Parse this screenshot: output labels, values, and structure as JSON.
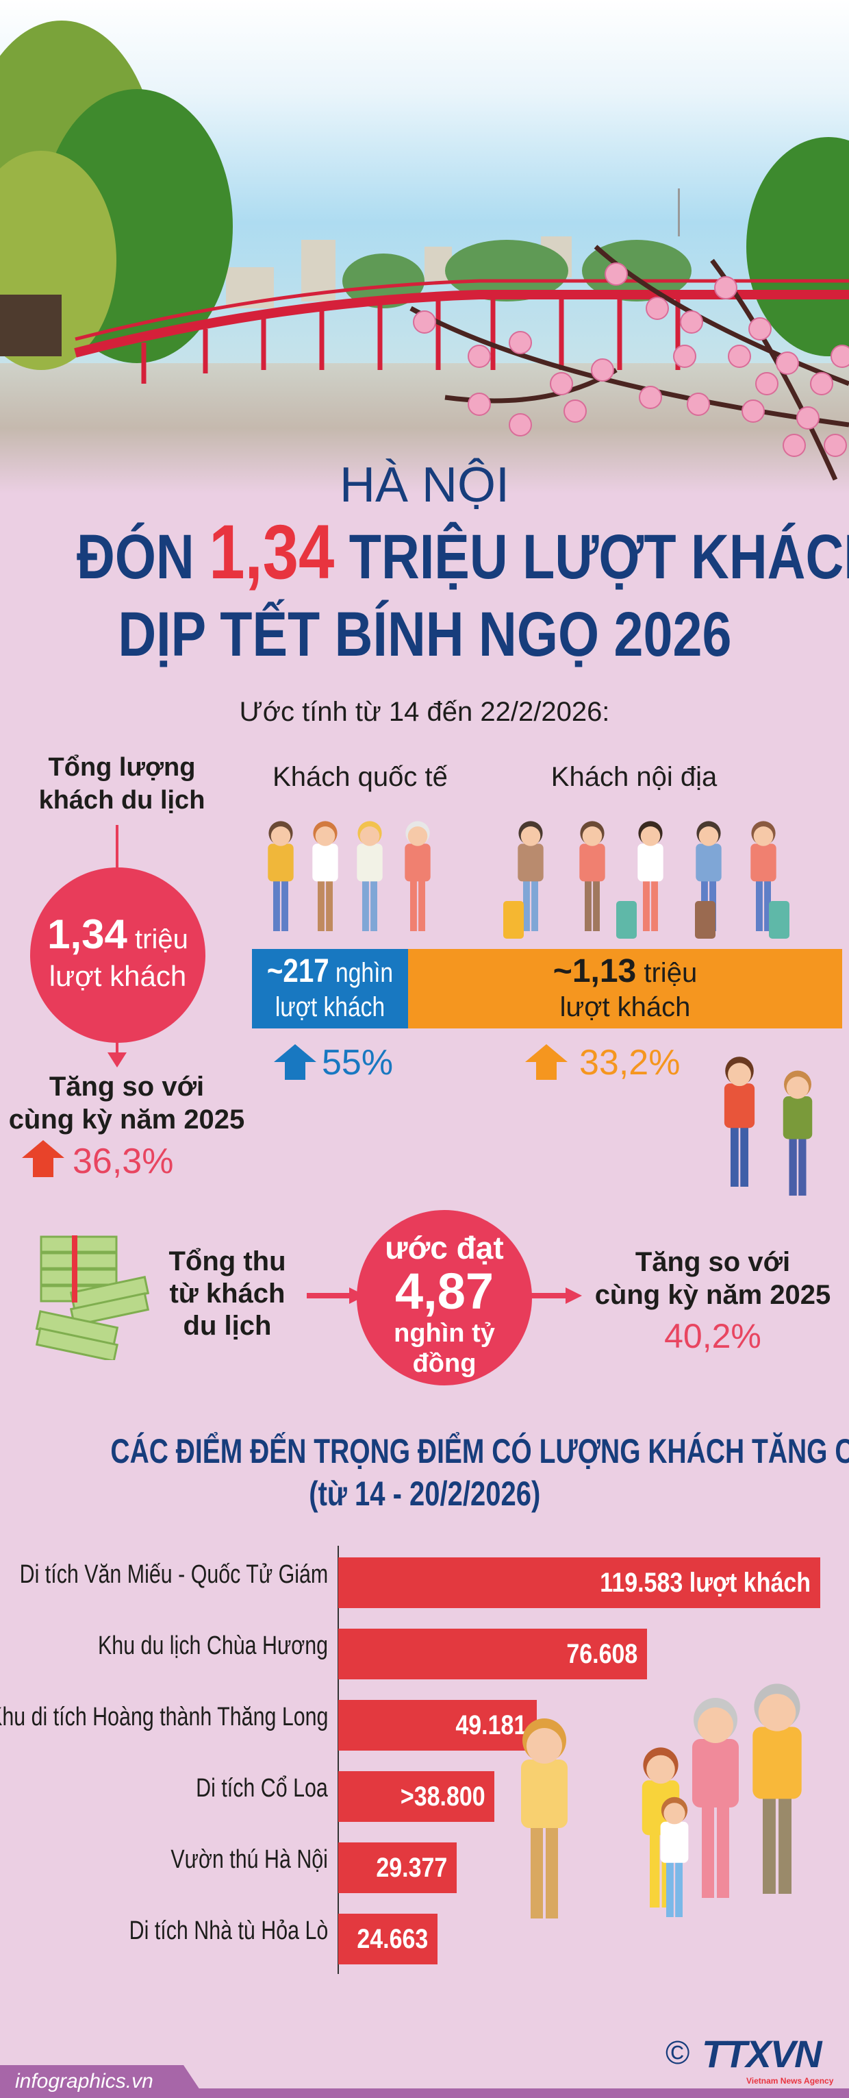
{
  "header": {
    "city": "HÀ NỘI",
    "title_prefix": "ĐÓN",
    "title_number": "1,34",
    "title_suffix": "TRIỆU LƯỢT KHÁCH",
    "title_line2": "DỊP TẾT BÍNH NGỌ 2026"
  },
  "subtitle": "Ước tính từ 14 đến 22/2/2026:",
  "total": {
    "label_line1": "Tổng lượng",
    "label_line2": "khách du lịch",
    "value": "1,34",
    "unit": "triệu",
    "unit_line2": "lượt khách",
    "growth_label_line1": "Tăng so với",
    "growth_label_line2": "cùng kỳ năm 2025",
    "growth": "36,3%"
  },
  "international": {
    "label": "Khách quốc tế",
    "value": "~217",
    "unit": "nghìn",
    "unit_line2": "lượt khách",
    "growth": "55%",
    "color": "#1878c1"
  },
  "domestic": {
    "label": "Khách nội địa",
    "value": "~1,13",
    "unit": "triệu",
    "unit_line2": "lượt khách",
    "growth": "33,2%",
    "color": "#f5961f"
  },
  "revenue": {
    "label_line1": "Tổng thu",
    "label_line2": "từ khách",
    "label_line3": "du lịch",
    "circle_line1": "ước đạt",
    "value": "4,87",
    "unit_line1": "nghìn tỷ",
    "unit_line2": "đồng",
    "growth_label_line1": "Tăng so với",
    "growth_label_line2": "cùng kỳ năm 2025",
    "growth": "40,2%"
  },
  "chart_data": {
    "type": "bar",
    "orientation": "horizontal",
    "title": "CÁC ĐIỂM ĐẾN TRỌNG ĐIỂM CÓ LƯỢNG KHÁCH TĂNG CAO",
    "subtitle": "(từ 14 - 20/2/2026)",
    "categories": [
      "Di tích Văn Miếu - Quốc Tử Giám",
      "Khu du lịch Chùa Hương",
      "Khu di tích Hoàng thành Thăng Long",
      "Di tích Cổ Loa",
      "Vườn thú Hà Nội",
      "Di tích Nhà tù Hỏa Lò"
    ],
    "values": [
      119583,
      76608,
      49181,
      38800,
      29377,
      24663
    ],
    "value_labels": [
      "119.583 lượt khách",
      "76.608",
      "49.181",
      ">38.800",
      "29.377",
      "24.663"
    ],
    "color": "#e3393f",
    "xlim": [
      0,
      119583
    ]
  },
  "footer": {
    "site": "infographics.vn",
    "copyright": "©",
    "logo": "TTXVN",
    "logo_sub": "Vietnam News Agency"
  },
  "colors": {
    "navy": "#173d7c",
    "red": "#e8343f",
    "circle": "#e83c5a",
    "background": "#ebcfe3",
    "footer": "#a766a8"
  }
}
